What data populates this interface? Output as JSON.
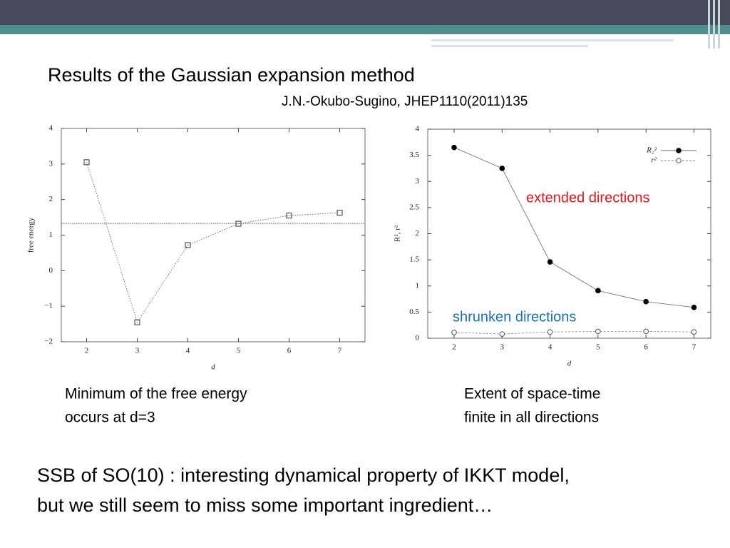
{
  "slide": {
    "title": "Results of the Gaussian expansion method",
    "citation": "J.N.-Okubo-Sugino, JHEP1110(2011)135",
    "captions": [
      [
        "Minimum of the free energy",
        "occurs at d=3"
      ],
      [
        "Extent of space-time",
        "finite in all directions"
      ]
    ],
    "conclusion": [
      "SSB of SO(10) : interesting dynamical property of IKKT model,",
      "but we still seem to miss some important ingredient…"
    ]
  },
  "chart_data": [
    {
      "type": "line",
      "xlabel": "d",
      "ylabel": "free energy",
      "x": [
        2,
        3,
        4,
        5,
        6,
        7
      ],
      "values": [
        3.05,
        -1.45,
        0.72,
        1.32,
        1.55,
        1.63
      ],
      "color": "#555555",
      "marker": "square",
      "dash": "dotted",
      "hline": 1.33,
      "xlim": [
        1.5,
        7.5
      ],
      "xticks": [
        2,
        3,
        4,
        5,
        6,
        7
      ],
      "ylim": [
        -2,
        4
      ],
      "yticks": [
        {
          "value": -2,
          "label": "−2"
        },
        {
          "value": -1,
          "label": "−1"
        },
        0,
        1,
        2,
        3,
        4
      ]
    },
    {
      "type": "line",
      "xlabel": "d",
      "ylabel": "R², r²",
      "x": [
        2,
        3,
        4,
        5,
        6,
        7
      ],
      "series": [
        {
          "name": "R₂²",
          "color": "#666666",
          "marker": "circle-filled",
          "dash": "solid",
          "values": [
            3.65,
            3.25,
            1.46,
            0.91,
            0.7,
            0.59
          ]
        },
        {
          "name": "r²",
          "color": "#888888",
          "marker": "circle-open",
          "dash": "dashed",
          "values": [
            0.11,
            0.08,
            0.12,
            0.13,
            0.13,
            0.12
          ]
        }
      ],
      "legend": "upper right",
      "annotations": [
        {
          "text": "extended directions",
          "color": "#e8161b"
        },
        {
          "text": "shrunken directions",
          "color": "#1a6fb5"
        }
      ],
      "xlim": [
        1.45,
        7.35
      ],
      "xticks": [
        2,
        3,
        4,
        5,
        6,
        7
      ],
      "ylim": [
        0,
        4
      ],
      "yticks": [
        0,
        0.5,
        1,
        1.5,
        2,
        2.5,
        3,
        3.5,
        4
      ]
    }
  ]
}
